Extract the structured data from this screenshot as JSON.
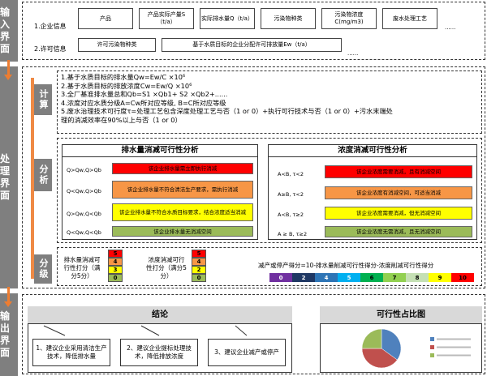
{
  "sections": {
    "input": [
      "输入",
      "界面"
    ],
    "process": [
      "处理",
      "界面"
    ],
    "output": [
      "输出",
      "界面"
    ]
  },
  "input": {
    "row1_label": "1.企业信息",
    "row2_label": "2.许可信息",
    "row1_boxes": [
      "产品",
      "产品实际产量S（t/a）",
      "实际排水量Q（t/a）",
      "污染物种类",
      "污染物浓度C(mg/m3)",
      "废水处理工艺"
    ],
    "row1_more": "......",
    "row2_boxes": [
      "许可污染物种类",
      "基于水质目标的企业分配许可排放量Ew（t/a）"
    ],
    "row2_more": "......"
  },
  "calc": {
    "label": "计算",
    "lines": [
      "1.基于水质目标的排水量Qw=Ew/C ×10⁶",
      "2.基于水质目标的排放浓度Cw=Ew/Q ×10⁶",
      "3.全厂基准排水量总和Qb=S1 ×Qb1+ S2 ×Qb2+......",
      "4.浓度对应水质分级A=Cw所对应等级, B=C所对应等级",
      "5.废水治理技术可行度τ=处理工艺包含深度处理工艺与否（1 or 0）+执行可行技术与否（1 or 0）+污水末端处",
      "理的消减效率在90%以上与否（1 or 0）"
    ]
  },
  "analysis": {
    "label": "分析",
    "left_title": "排水量消减可行性分析",
    "right_title": "浓度消减可行性分析",
    "left_rows": [
      {
        "cond": "Q>Qw,Q>Qb",
        "result": "该企业排水量需立即执行消减",
        "color": "#ff0000"
      },
      {
        "cond": "Q<Qw,Q>Qb",
        "result": "该企业排水量不符合清洁生产要求，需执行消减",
        "color": "#f79646"
      },
      {
        "cond": "Q>Qw,Q<Qb",
        "result": "该企业排水量不符合水质目标要求，结合浓度适当消减",
        "color": "#ffff00"
      },
      {
        "cond": "Q<Qw,Q<Qb",
        "result": "该企业排水量无消减空间",
        "color": "#9bbb59"
      }
    ],
    "right_rows": [
      {
        "cond": "A<B, τ<2",
        "result": "该企业浓度需要消减，且有消减空间",
        "color": "#ff0000"
      },
      {
        "cond": "A≥B, τ<2",
        "result": "该企业浓度有消减空间，可适当消减",
        "color": "#f79646"
      },
      {
        "cond": "A<B, τ≥2",
        "result": "该企业浓度需要消减，但无消减空间",
        "color": "#ffff00"
      },
      {
        "cond": "A ≥ B, τ≥2",
        "result": "该企业浓度无需消减，且无消减空间",
        "color": "#9bbb59"
      }
    ]
  },
  "grading": {
    "label": "分级",
    "water_label": "排水量消减可行性打分（满分5分）",
    "conc_label": "浓度消减可行性打分（满分5分）",
    "water_scores": [
      "5",
      "4",
      "3",
      "0"
    ],
    "conc_scores": [
      "5",
      "4",
      "2",
      "0"
    ],
    "score_colors": [
      "#ff0000",
      "#f79646",
      "#ffff00",
      "#9bbb59"
    ],
    "formula": "减产或停产得分=10-排水量削减可行性得分-浓度削减可行性得分",
    "bar": [
      {
        "v": "0",
        "c": "#7030a0"
      },
      {
        "v": "2",
        "c": "#1f3864"
      },
      {
        "v": "4",
        "c": "#2e75b6"
      },
      {
        "v": "5",
        "c": "#00b0f0"
      },
      {
        "v": "6",
        "c": "#00b050"
      },
      {
        "v": "7",
        "c": "#92d050"
      },
      {
        "v": "8",
        "c": "#c5e0b4"
      },
      {
        "v": "9",
        "c": "#ffff00"
      },
      {
        "v": "10",
        "c": "#ff0000"
      }
    ]
  },
  "output": {
    "conclusion_title": "结论",
    "pie_title": "可行性占比图",
    "suggestions": [
      "1、建议企业采用清洁生产技术，降低排水量",
      "2、建议企业提标处理技术，降低排放浓度",
      "3、建议企业减产或停产"
    ]
  },
  "chart_data": {
    "type": "pie",
    "values": [
      35,
      40,
      25
    ],
    "colors": [
      "#4f81bd",
      "#c0504d",
      "#9bbb59"
    ]
  }
}
